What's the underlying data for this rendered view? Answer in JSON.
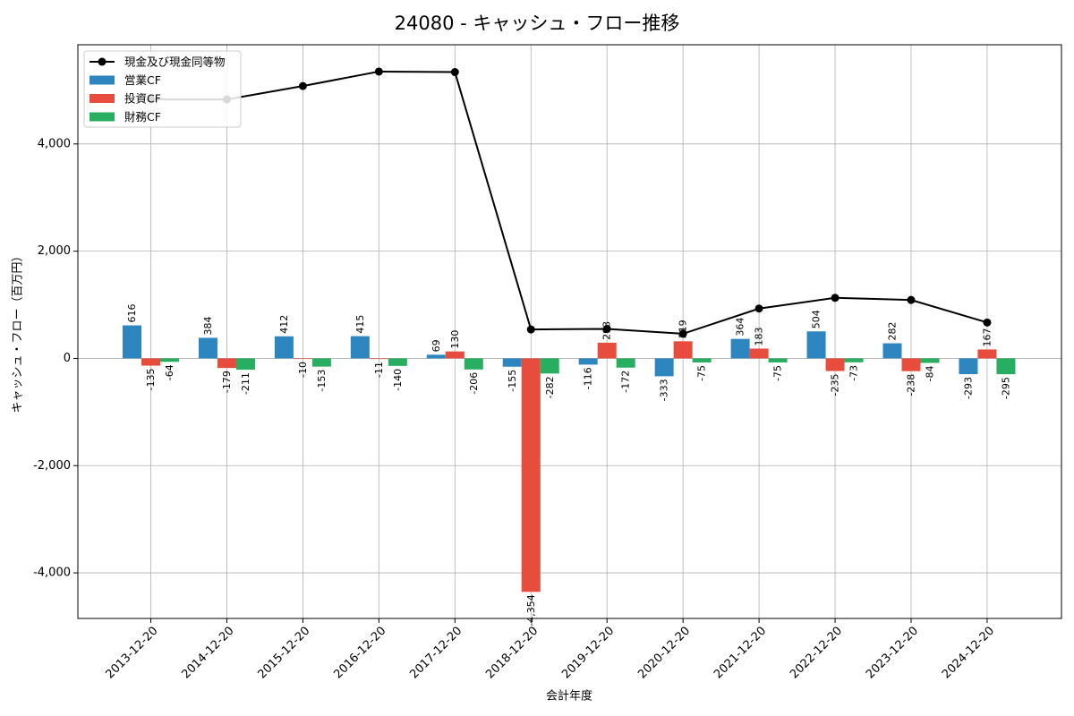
{
  "chart_data": {
    "type": "bar",
    "title": "24080 - キャッシュ・フロー推移",
    "xlabel": "会計年度",
    "ylabel": "キャッシュ・フロー（百万円）",
    "categories": [
      "2013-12-20",
      "2014-12-20",
      "2015-12-20",
      "2016-12-20",
      "2017-12-20",
      "2018-12-20",
      "2019-12-20",
      "2020-12-20",
      "2021-12-20",
      "2022-12-20",
      "2023-12-20",
      "2024-12-20"
    ],
    "ylim": [
      -4850,
      5850
    ],
    "yticks": [
      -4000,
      -2000,
      0,
      2000,
      4000
    ],
    "ytick_labels": [
      "-4,000",
      "-2,000",
      "0",
      "2,000",
      "4,000"
    ],
    "grid": true,
    "legend_position": "top-left",
    "series": [
      {
        "name": "営業CF",
        "kind": "bar",
        "color": "#2e86c1",
        "values": [
          616,
          384,
          412,
          415,
          69,
          -155,
          -116,
          -333,
          364,
          504,
          282,
          -293
        ],
        "labels": [
          "616",
          "384",
          "412",
          "415",
          "69",
          "-155",
          "-116",
          "-333",
          "364",
          "504",
          "282",
          "-293"
        ]
      },
      {
        "name": "投資CF",
        "kind": "bar",
        "color": "#e74c3c",
        "values": [
          -135,
          -179,
          -10,
          -11,
          130,
          -4354,
          293,
          319,
          183,
          -235,
          -238,
          167
        ],
        "labels": [
          "-135",
          "-179",
          "-10",
          "-11",
          "130",
          "-4,354",
          "293",
          "319",
          "183",
          "-235",
          "-238",
          "167"
        ]
      },
      {
        "name": "財務CF",
        "kind": "bar",
        "color": "#27ae60",
        "values": [
          -64,
          -211,
          -153,
          -140,
          -206,
          -282,
          -172,
          -75,
          -75,
          -73,
          -84,
          -295
        ],
        "labels": [
          "-64",
          "-211",
          "-153",
          "-140",
          "-206",
          "-282",
          "-172",
          "-75",
          "-75",
          "-73",
          "-84",
          "-295"
        ]
      },
      {
        "name": "現金及び現金同等物",
        "kind": "line",
        "color": "#000000",
        "values": [
          4830,
          4830,
          5080,
          5350,
          5340,
          540,
          550,
          460,
          930,
          1130,
          1090,
          670
        ]
      }
    ]
  }
}
